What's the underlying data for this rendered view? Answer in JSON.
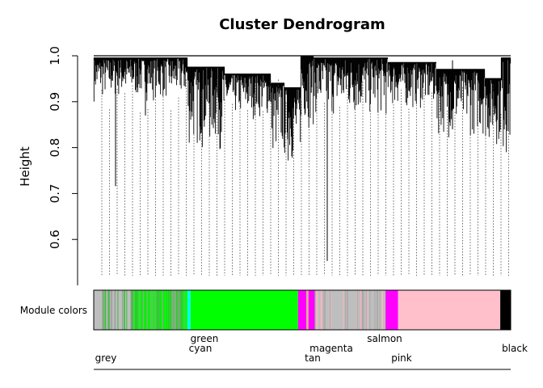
{
  "chart_data": {
    "type": "dendrogram",
    "title": "Cluster Dendrogram",
    "ylabel": "Height",
    "ylim": [
      0.5,
      1.0
    ],
    "yticks": [
      "0.6",
      "0.7",
      "0.8",
      "0.9",
      "1.0"
    ],
    "ytick_values": [
      0.6,
      0.7,
      0.8,
      0.9,
      1.0
    ],
    "color_bar_label": "Module colors",
    "modules": [
      {
        "name": "grey",
        "color": "#bebebe",
        "start": 0.0,
        "end": 0.09
      },
      {
        "name": "green",
        "color": "#00ff00",
        "start": 0.09,
        "end": 0.225
      },
      {
        "name": "cyan",
        "color": "#00ffff",
        "start": 0.225,
        "end": 0.232
      },
      {
        "name": "green",
        "color": "#00ff00",
        "start": 0.232,
        "end": 0.49
      },
      {
        "name": "magenta",
        "color": "#ff00ff",
        "start": 0.49,
        "end": 0.51
      },
      {
        "name": "tan",
        "color": "#d2b48c",
        "start": 0.51,
        "end": 0.515
      },
      {
        "name": "magenta",
        "color": "#ff00ff",
        "start": 0.515,
        "end": 0.53
      },
      {
        "name": "grey",
        "color": "#bebebe",
        "start": 0.53,
        "end": 0.7
      },
      {
        "name": "salmon",
        "color": "#fa8072",
        "start": 0.7,
        "end": 0.71
      },
      {
        "name": "magenta",
        "color": "#ff00ff",
        "start": 0.7,
        "end": 0.73
      },
      {
        "name": "pink",
        "color": "#ffc0cb",
        "start": 0.73,
        "end": 0.975
      },
      {
        "name": "black",
        "color": "#000000",
        "start": 0.975,
        "end": 1.0
      }
    ],
    "module_labels": [
      {
        "text": "grey",
        "row": 2
      },
      {
        "text": "green",
        "row": 0
      },
      {
        "text": "cyan",
        "row": 1
      },
      {
        "text": "magenta",
        "row": 1
      },
      {
        "text": "tan",
        "row": 2
      },
      {
        "text": "salmon",
        "row": 0
      },
      {
        "text": "pink",
        "row": 2
      },
      {
        "text": "black",
        "row": 1
      }
    ],
    "grid": false
  }
}
